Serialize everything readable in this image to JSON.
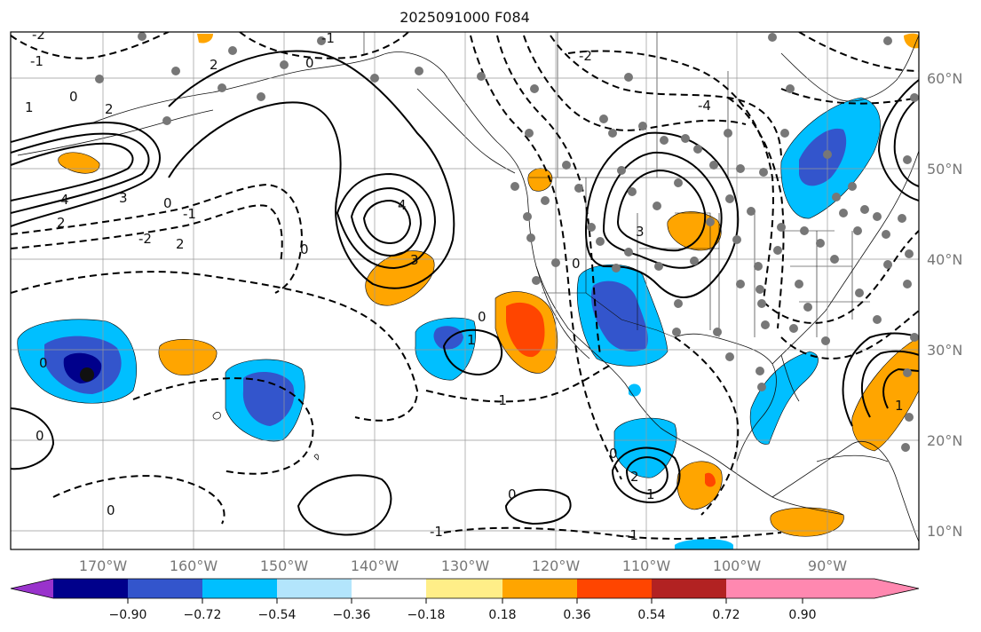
{
  "title": "2025091000 F084",
  "latitude_labels": [
    "60°N",
    "50°N",
    "40°N",
    "30°N",
    "20°N",
    "10°N"
  ],
  "longitude_labels": [
    "170°W",
    "160°W",
    "150°W",
    "140°W",
    "130°W",
    "120°W",
    "110°W",
    "100°W",
    "90°W"
  ],
  "colorbar": {
    "tick_labels": [
      "−0.90",
      "−0.72",
      "−0.54",
      "−0.36",
      "−0.18",
      "0.18",
      "0.36",
      "0.54",
      "0.72",
      "0.90"
    ],
    "colors": [
      "#9933cc",
      "#00008b",
      "#3355cc",
      "#00bfff",
      "#b3e5fc",
      "#ffffff",
      "#ffee88",
      "#ffa500",
      "#ff4500",
      "#b22222",
      "#ff88b0"
    ]
  },
  "contour_labels": [
    {
      "text": "-2"
    },
    {
      "text": "-1"
    },
    {
      "text": "0"
    },
    {
      "text": "1"
    },
    {
      "text": "2"
    },
    {
      "text": "4"
    },
    {
      "text": "3"
    },
    {
      "text": "2"
    },
    {
      "text": "-1"
    },
    {
      "text": "0"
    },
    {
      "text": "-2"
    },
    {
      "text": "2"
    },
    {
      "text": "4"
    },
    {
      "text": "3"
    },
    {
      "text": "0"
    },
    {
      "text": "2"
    },
    {
      "text": "-1"
    },
    {
      "text": "0"
    },
    {
      "text": "-4"
    },
    {
      "text": "-2"
    },
    {
      "text": "3"
    },
    {
      "text": "0"
    },
    {
      "text": "0"
    },
    {
      "text": "-1"
    },
    {
      "text": "1"
    },
    {
      "text": "0"
    },
    {
      "text": "0"
    },
    {
      "text": "2"
    },
    {
      "text": "1"
    },
    {
      "text": "0"
    },
    {
      "text": "-1"
    },
    {
      "text": "0"
    },
    {
      "text": "-1"
    },
    {
      "text": "1"
    },
    {
      "text": "0"
    }
  ]
}
